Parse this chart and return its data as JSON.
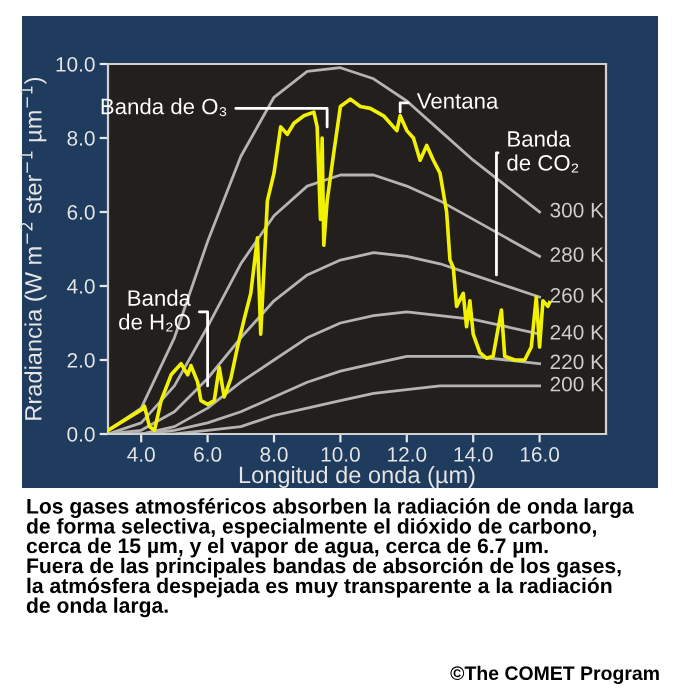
{
  "chart_data": {
    "type": "line",
    "xlabel": "Longitud de onda (µm)",
    "ylabel": "Rradiancia (W m$^{−2}$ ster$^{−1}$ µm$^{−1}$)",
    "xlim": [
      3,
      18
    ],
    "ylim": [
      0,
      10
    ],
    "xticks": [
      {
        "value": 4,
        "label": "4.0"
      },
      {
        "value": 6,
        "label": "6.0"
      },
      {
        "value": 8,
        "label": "8.0"
      },
      {
        "value": 10,
        "label": "10.0"
      },
      {
        "value": 12,
        "label": "12.0"
      },
      {
        "value": 14,
        "label": "14.0"
      },
      {
        "value": 16,
        "label": "16.0"
      }
    ],
    "yticks": [
      {
        "value": 0,
        "label": "0.0"
      },
      {
        "value": 2,
        "label": "2.0"
      },
      {
        "value": 4,
        "label": "4.0"
      },
      {
        "value": 6,
        "label": "6.0"
      },
      {
        "value": 8,
        "label": "8.0"
      },
      {
        "value": 10,
        "label": "10.0"
      }
    ],
    "grid": false,
    "legend": false,
    "marker": "none",
    "line_style": "solid",
    "series": [
      {
        "name": "300 K",
        "color": "#b4b4b4",
        "x": [
          3,
          4,
          5,
          6,
          7,
          8,
          9,
          10,
          11,
          12,
          13,
          14,
          15,
          16
        ],
        "values": [
          0.1,
          0.7,
          2.6,
          5.2,
          7.5,
          9.1,
          9.8,
          9.9,
          9.6,
          9.0,
          8.2,
          7.4,
          6.7,
          6.0
        ]
      },
      {
        "name": "280 K",
        "color": "#b4b4b4",
        "x": [
          3,
          4,
          5,
          6,
          7,
          8,
          9,
          10,
          11,
          12,
          13,
          14,
          15,
          16
        ],
        "values": [
          0.0,
          0.3,
          1.3,
          2.9,
          4.6,
          5.9,
          6.7,
          7.0,
          7.0,
          6.7,
          6.3,
          5.8,
          5.3,
          4.8
        ]
      },
      {
        "name": "260 K",
        "color": "#b4b4b4",
        "x": [
          3,
          4,
          5,
          6,
          7,
          8,
          9,
          10,
          11,
          12,
          13,
          14,
          15,
          16
        ],
        "values": [
          0.0,
          0.1,
          0.6,
          1.5,
          2.6,
          3.6,
          4.3,
          4.7,
          4.9,
          4.8,
          4.6,
          4.3,
          4.0,
          3.7
        ]
      },
      {
        "name": "240 K",
        "color": "#b4b4b4",
        "x": [
          3,
          4,
          5,
          6,
          7,
          8,
          9,
          10,
          11,
          12,
          13,
          14,
          15,
          16
        ],
        "values": [
          0.0,
          0.0,
          0.2,
          0.7,
          1.4,
          2.0,
          2.6,
          3.0,
          3.2,
          3.3,
          3.2,
          3.1,
          2.9,
          2.7
        ]
      },
      {
        "name": "220 K",
        "color": "#b4b4b4",
        "x": [
          3,
          4,
          5,
          6,
          7,
          8,
          9,
          10,
          11,
          12,
          13,
          14,
          15,
          16
        ],
        "values": [
          0.0,
          0.0,
          0.1,
          0.3,
          0.6,
          1.0,
          1.4,
          1.7,
          1.9,
          2.1,
          2.1,
          2.1,
          2.0,
          1.9
        ]
      },
      {
        "name": "200 K",
        "color": "#b4b4b4",
        "x": [
          3,
          4,
          5,
          6,
          7,
          8,
          9,
          10,
          11,
          12,
          13,
          14,
          15,
          16
        ],
        "values": [
          0.0,
          0.0,
          0.0,
          0.1,
          0.2,
          0.5,
          0.7,
          0.9,
          1.1,
          1.2,
          1.3,
          1.3,
          1.3,
          1.3
        ]
      },
      {
        "color": "#f2f200",
        "x": [
          3.0,
          4.0,
          4.1,
          4.25,
          4.4,
          4.6,
          4.9,
          5.2,
          5.4,
          5.5,
          5.7,
          5.8,
          6.0,
          6.2,
          6.35,
          6.5,
          6.7,
          6.9,
          7.1,
          7.3,
          7.5,
          7.6,
          7.7,
          7.8,
          8.0,
          8.2,
          8.4,
          8.6,
          8.9,
          9.2,
          9.3,
          9.4,
          9.45,
          9.5,
          9.6,
          9.8,
          10.0,
          10.3,
          10.6,
          10.9,
          11.3,
          11.7,
          11.8,
          12.0,
          12.2,
          12.4,
          12.6,
          12.8,
          13.0,
          13.2,
          13.3,
          13.4,
          13.5,
          13.7,
          13.8,
          13.9,
          14.0,
          14.2,
          14.4,
          14.6,
          14.85,
          14.95,
          15.25,
          15.55,
          15.75,
          15.9,
          16.0,
          16.1,
          16.25,
          16.3
        ],
        "values": [
          0.1,
          0.65,
          0.75,
          0.2,
          0.1,
          0.9,
          1.6,
          1.9,
          1.6,
          1.85,
          1.4,
          0.9,
          0.8,
          0.9,
          1.8,
          1.0,
          1.5,
          2.35,
          3.1,
          3.8,
          5.3,
          2.7,
          4.5,
          6.3,
          7.05,
          8.3,
          8.1,
          8.4,
          8.6,
          8.7,
          8.3,
          5.8,
          8.0,
          5.1,
          6.3,
          7.6,
          8.85,
          9.05,
          8.85,
          8.8,
          8.6,
          8.2,
          8.6,
          8.2,
          8.0,
          7.4,
          7.8,
          7.4,
          7.05,
          6.0,
          4.7,
          4.5,
          3.45,
          3.8,
          2.9,
          3.6,
          2.7,
          2.2,
          2.05,
          2.1,
          3.35,
          2.1,
          2.0,
          2.0,
          2.35,
          3.7,
          2.35,
          3.6,
          3.45,
          3.55
        ]
      }
    ],
    "annotations": [
      {
        "text": "Banda de O₃",
        "x": 9.6,
        "y": 8.3
      },
      {
        "text": "Ventana",
        "x": 11.8,
        "y": 8.7
      },
      {
        "text": "Banda\nde CO₂",
        "x": 14.7,
        "y": 4.3
      },
      {
        "text": "Banda\nde H₂O",
        "x": 6.0,
        "y": 1.3
      },
      "Los gases atmosféricos absorben la radiación de onda larga\nde forma selectiva, especialmente el dióxido de carbono,\ncerca de 15 µm, y el vapor de agua, cerca de 6.7 µm.\nFuera de las principales bandas de absorción de los gases,\nla atmósfera despejada es muy transparente a la radiación\nde onda larga.",
      "©The COMET Program"
    ]
  }
}
